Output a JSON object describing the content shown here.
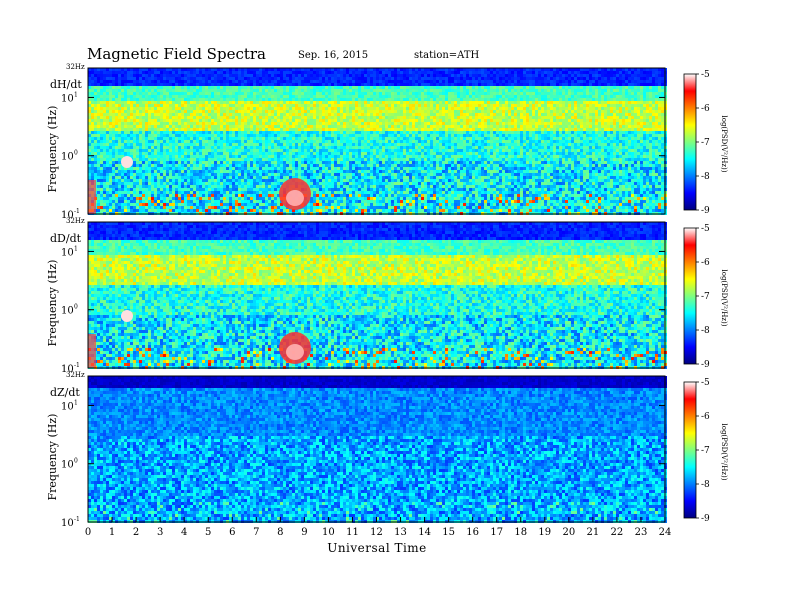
{
  "header": {
    "title": "Magnetic  Field  Spectra",
    "date": "Sep. 16, 2015",
    "station": "station=ATH"
  },
  "chart_data": {
    "type": "heatmap",
    "xlabel": "Universal Time",
    "x_ticks": [
      "0",
      "1",
      "2",
      "3",
      "4",
      "5",
      "6",
      "7",
      "8",
      "9",
      "10",
      "11",
      "12",
      "13",
      "14",
      "15",
      "16",
      "17",
      "18",
      "19",
      "20",
      "21",
      "22",
      "23",
      "24"
    ],
    "xlim": [
      0,
      24
    ],
    "y_scale": "log",
    "ylim_hz": [
      0.1,
      32
    ],
    "colorbar": {
      "label": "log(PSD(V²/Hz))",
      "ticks": [
        "-5",
        "-6",
        "-7",
        "-8",
        "-9"
      ],
      "range": [
        -9,
        -5
      ],
      "colors": [
        "#00007f",
        "#0000ff",
        "#007fff",
        "#00ffff",
        "#7fff7f",
        "#ffff00",
        "#ff7f00",
        "#ff0000",
        "#ffffff"
      ]
    },
    "panels": [
      {
        "name": "dH/dt",
        "ylabel": "Frequency  (Hz)",
        "y_tick_labels": {
          "top": "32Hz",
          "ten": "10",
          "one": "10",
          "tenth": "10"
        },
        "y_tick_exps": {
          "ten": "1",
          "one": "0",
          "tenth": "-1"
        }
      },
      {
        "name": "dD/dt",
        "ylabel": "Frequency  (Hz)",
        "y_tick_labels": {
          "top": "32Hz",
          "ten": "10",
          "one": "10",
          "tenth": "10"
        },
        "y_tick_exps": {
          "ten": "1",
          "one": "0",
          "tenth": "-1"
        }
      },
      {
        "name": "dZ/dt",
        "ylabel": "Frequency  (Hz)",
        "y_tick_labels": {
          "top": "32Hz",
          "ten": "10",
          "one": "10",
          "tenth": "10"
        },
        "y_tick_exps": {
          "ten": "1",
          "one": "0",
          "tenth": "-1"
        }
      }
    ]
  }
}
